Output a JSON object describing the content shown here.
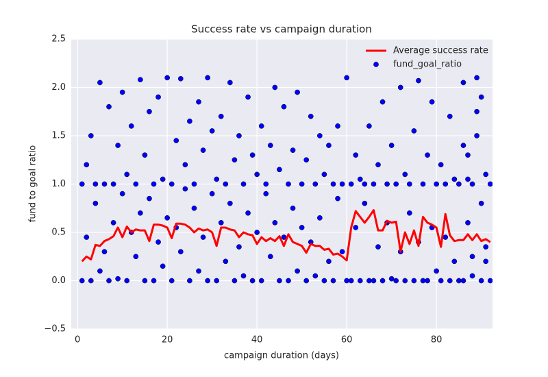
{
  "chart_data": {
    "type": "scatter",
    "title": "Success rate vs campaign duration",
    "xlabel": "campaign duration (days)",
    "ylabel": "fund to goal ratio",
    "xlim": [
      -1.4,
      92.5
    ],
    "ylim": [
      -0.5,
      2.5
    ],
    "xticks": [
      0,
      20,
      40,
      60,
      80
    ],
    "yticks": [
      {
        "value": -0.5,
        "label": "−0.5"
      },
      {
        "value": 0,
        "label": "0.0"
      },
      {
        "value": 0.5,
        "label": "0.5"
      },
      {
        "value": 1,
        "label": "1.0"
      },
      {
        "value": 1.5,
        "label": "1.5"
      },
      {
        "value": 2,
        "label": "2.0"
      },
      2.5
    ],
    "grid": true,
    "legend": "upper right",
    "series": [
      {
        "name": "Average success rate",
        "type": "line",
        "color": "#ff0000",
        "x": [
          1,
          2,
          3,
          4,
          5,
          6,
          7,
          8,
          9,
          10,
          11,
          12,
          13,
          14,
          15,
          16,
          17,
          18,
          19,
          20,
          21,
          22,
          23,
          24,
          25,
          26,
          27,
          28,
          29,
          30,
          31,
          32,
          33,
          34,
          35,
          36,
          37,
          38,
          39,
          40,
          41,
          42,
          43,
          44,
          45,
          46,
          47,
          48,
          49,
          50,
          51,
          52,
          53,
          54,
          55,
          56,
          57,
          58,
          59,
          60,
          61,
          62,
          63,
          64,
          65,
          66,
          67,
          68,
          69,
          70,
          71,
          72,
          73,
          74,
          75,
          76,
          77,
          78,
          79,
          80,
          81,
          82,
          83,
          84,
          85,
          86,
          87,
          88,
          89,
          90,
          91,
          92
        ],
        "values": [
          0.2,
          0.25,
          0.22,
          0.37,
          0.36,
          0.41,
          0.43,
          0.46,
          0.55,
          0.45,
          0.56,
          0.5,
          0.53,
          0.52,
          0.52,
          0.41,
          0.58,
          0.58,
          0.57,
          0.55,
          0.44,
          0.59,
          0.59,
          0.58,
          0.55,
          0.5,
          0.54,
          0.52,
          0.53,
          0.5,
          0.36,
          0.55,
          0.55,
          0.53,
          0.52,
          0.45,
          0.5,
          0.48,
          0.47,
          0.38,
          0.45,
          0.41,
          0.44,
          0.41,
          0.46,
          0.36,
          0.48,
          0.4,
          0.38,
          0.36,
          0.29,
          0.38,
          0.36,
          0.36,
          0.32,
          0.33,
          0.27,
          0.28,
          0.25,
          0.21,
          0.55,
          0.72,
          0.66,
          0.6,
          0.66,
          0.73,
          0.52,
          0.52,
          0.62,
          0.6,
          0.61,
          0.3,
          0.5,
          0.38,
          0.52,
          0.36,
          0.66,
          0.6,
          0.58,
          0.55,
          0.35,
          0.69,
          0.47,
          0.41,
          0.42,
          0.42,
          0.48,
          0.42,
          0.48,
          0.41,
          0.43,
          0.4
        ]
      },
      {
        "name": "fund_goal_ratio",
        "type": "scatter",
        "color": "#0000ff",
        "x": [
          1,
          1,
          2,
          2,
          3,
          3,
          4,
          4,
          5,
          5,
          6,
          6,
          7,
          7,
          8,
          8,
          9,
          9,
          10,
          10,
          11,
          11,
          12,
          12,
          13,
          13,
          14,
          14,
          15,
          15,
          16,
          16,
          17,
          17,
          18,
          18,
          19,
          19,
          20,
          20,
          21,
          21,
          22,
          22,
          23,
          23,
          24,
          24,
          25,
          25,
          26,
          26,
          27,
          27,
          28,
          28,
          29,
          29,
          30,
          30,
          31,
          31,
          32,
          32,
          33,
          33,
          34,
          34,
          35,
          35,
          36,
          36,
          37,
          37,
          38,
          38,
          39,
          39,
          40,
          40,
          41,
          41,
          42,
          42,
          43,
          43,
          44,
          44,
          45,
          45,
          46,
          46,
          47,
          47,
          48,
          48,
          49,
          49,
          50,
          50,
          51,
          51,
          52,
          52,
          53,
          53,
          54,
          54,
          55,
          55,
          56,
          56,
          57,
          57,
          58,
          58,
          59,
          59,
          60,
          60,
          61,
          61,
          62,
          62,
          63,
          63,
          64,
          64,
          65,
          65,
          66,
          66,
          67,
          67,
          68,
          68,
          69,
          69,
          70,
          70,
          71,
          71,
          72,
          72,
          73,
          73,
          74,
          74,
          75,
          75,
          76,
          76,
          77,
          77,
          78,
          78,
          79,
          79,
          80,
          80,
          81,
          81,
          82,
          82,
          83,
          83,
          84,
          84,
          85,
          85,
          86,
          86,
          87,
          87,
          88,
          88,
          89,
          89,
          90,
          91,
          90,
          91,
          92,
          92,
          89,
          90,
          88,
          87,
          86,
          91
        ],
        "values": [
          0,
          1,
          0.45,
          1.2,
          0,
          1.5,
          0.8,
          1,
          0.1,
          2.05,
          1,
          0.3,
          1.8,
          0,
          0.6,
          1,
          1.4,
          0.02,
          0.9,
          1.95,
          0,
          1.1,
          0.5,
          1.6,
          1,
          0.25,
          2.08,
          0.7,
          1.3,
          0,
          0.85,
          1.75,
          0,
          1,
          0.4,
          1.9,
          1.05,
          0.15,
          2.1,
          0.65,
          1,
          0,
          1.45,
          0.55,
          2.09,
          0.3,
          1.2,
          0.95,
          0,
          1.65,
          0.75,
          1,
          1.85,
          0.1,
          0.45,
          1.35,
          2.1,
          0,
          0.9,
          1.55,
          0,
          1.05,
          0.6,
          1.7,
          1,
          0.2,
          2.05,
          0.8,
          1.25,
          0,
          1.5,
          0.35,
          1,
          0.05,
          1.9,
          0.7,
          0,
          1.3,
          1.1,
          0.5,
          1.6,
          0,
          0.9,
          1,
          1.4,
          0.25,
          2.0,
          0.6,
          0,
          1.15,
          1.8,
          0.45,
          1,
          0,
          0.75,
          1.35,
          1.95,
          0.1,
          1,
          0.55,
          0,
          1.25,
          0.4,
          1.7,
          1,
          0.05,
          1.5,
          0.65,
          0,
          1.1,
          1.4,
          0.2,
          1,
          0,
          0.85,
          1.6,
          0.3,
          1,
          2.1,
          0,
          1,
          0,
          1.3,
          0.55,
          0,
          1.05,
          0.8,
          1,
          1.6,
          0,
          0,
          1,
          1.2,
          0.35,
          1.85,
          0,
          1,
          0.6,
          1.4,
          0.02,
          1,
          0,
          2.0,
          0.3,
          1.1,
          0,
          0.7,
          1,
          1.55,
          0,
          2.07,
          0.4,
          0,
          1,
          1.3,
          0,
          1.85,
          0.55,
          1,
          0.1,
          1.2,
          0,
          1,
          0.45,
          0,
          1.7,
          1.05,
          0.2,
          1,
          0,
          2.05,
          0,
          1.3,
          0.6,
          1,
          0.25,
          2.1,
          1.5,
          0.8,
          1.1,
          0,
          0.35,
          1,
          0,
          1.75,
          1.9,
          0.05,
          1.05,
          1.4,
          0.2
        ]
      }
    ]
  }
}
